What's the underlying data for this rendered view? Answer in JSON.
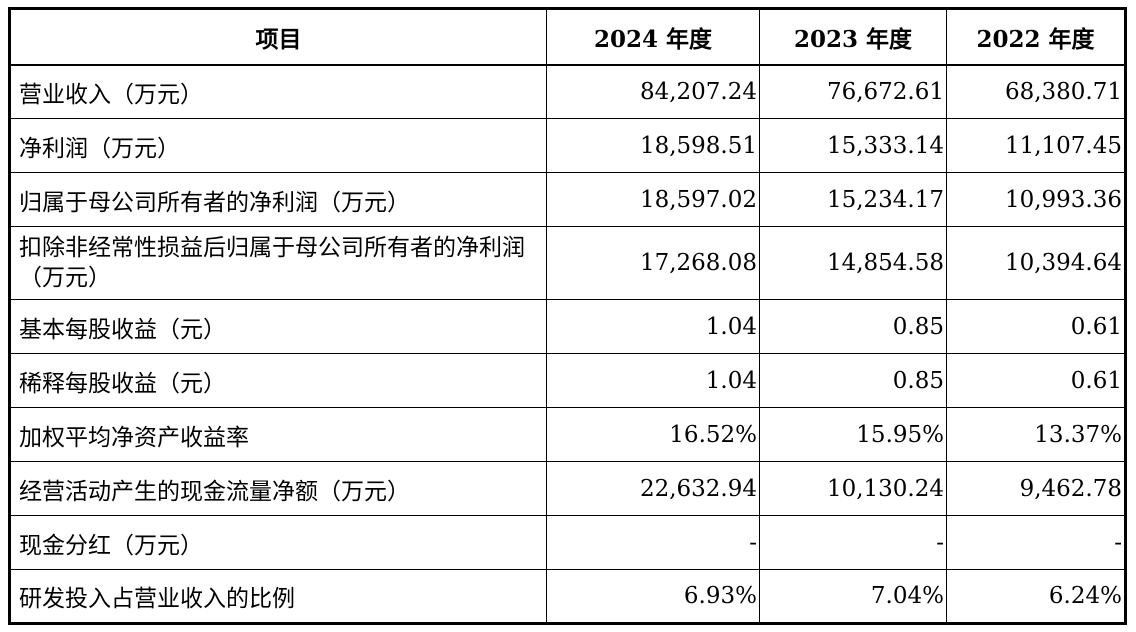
{
  "table": {
    "headers": [
      "项目",
      "2024 年度",
      "2023 年度",
      "2022 年度"
    ],
    "rows": [
      {
        "label": "营业收入（万元）",
        "values": [
          "84,207.24",
          "76,672.61",
          "68,380.71"
        ]
      },
      {
        "label": "净利润（万元）",
        "values": [
          "18,598.51",
          "15,333.14",
          "11,107.45"
        ]
      },
      {
        "label": "归属于母公司所有者的净利润（万元）",
        "values": [
          "18,597.02",
          "15,234.17",
          "10,993.36"
        ]
      },
      {
        "label": "扣除非经常性损益后归属于母公司所有者的净利润（万元）",
        "values": [
          "17,268.08",
          "14,854.58",
          "10,394.64"
        ]
      },
      {
        "label": "基本每股收益（元）",
        "values": [
          "1.04",
          "0.85",
          "0.61"
        ]
      },
      {
        "label": "稀释每股收益（元）",
        "values": [
          "1.04",
          "0.85",
          "0.61"
        ]
      },
      {
        "label": "加权平均净资产收益率",
        "values": [
          "16.52%",
          "15.95%",
          "13.37%"
        ]
      },
      {
        "label": "经营活动产生的现金流量净额（万元）",
        "values": [
          "22,632.94",
          "10,130.24",
          "9,462.78"
        ]
      },
      {
        "label": "现金分红（万元）",
        "values": [
          "-",
          "-",
          "-"
        ]
      },
      {
        "label": "研发投入占营业收入的比例",
        "values": [
          "6.93%",
          "7.04%",
          "6.24%"
        ]
      }
    ]
  }
}
